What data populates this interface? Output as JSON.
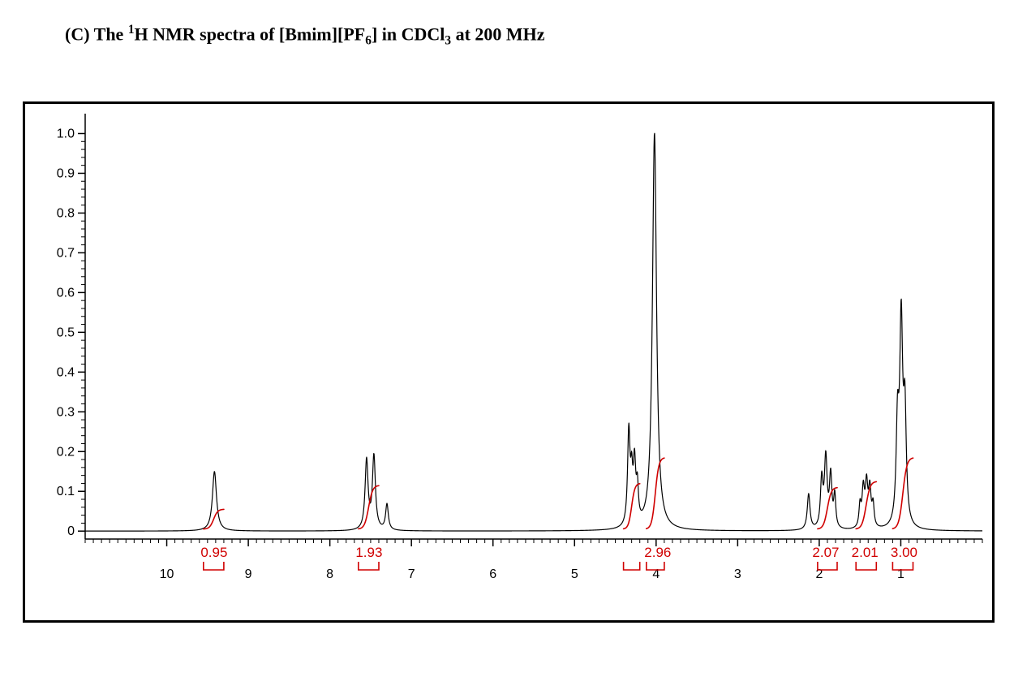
{
  "title": {
    "prefix": "(C) The ",
    "sup1": "1",
    "mid1": "H NMR spectra of [Bmim][PF",
    "sub1": "6",
    "mid2": "] in CDCl",
    "sub2": "3",
    "suffix": " at 200 MHz",
    "fontsize_pt": 22,
    "fontweight": "bold",
    "color": "#000000"
  },
  "chart": {
    "type": "nmr-spectrum",
    "background_color": "#ffffff",
    "frame_border_color": "#000000",
    "frame_border_width": 3,
    "plot": {
      "x_domain_ppm": [
        11.0,
        0.0
      ],
      "x_ticks_major": [
        10,
        9,
        8,
        7,
        6,
        5,
        4,
        3,
        2,
        1
      ],
      "x_tick_len_major": 9,
      "x_tick_len_minor": 5,
      "x_minor_count": 9,
      "y_domain": [
        -0.02,
        1.05
      ],
      "y_ticks_major": [
        0,
        0.1,
        0.2,
        0.3,
        0.4,
        0.5,
        0.6,
        0.7,
        0.8,
        0.9,
        1.0
      ],
      "y_tick_len_major": 9,
      "y_tick_len_minor": 5,
      "y_minor_count": 4,
      "axis_color": "#000000",
      "axis_width": 1.5,
      "tick_label_fontsize": 16,
      "tick_label_color": "#000000",
      "tick_label_family": "Arial, Helvetica, sans-serif",
      "spectrum_color": "#000000",
      "spectrum_width": 1.2,
      "baseline_noise": 0.003,
      "peaks": [
        {
          "ppm": 9.415,
          "height": 0.15,
          "width": 0.03
        },
        {
          "ppm": 7.55,
          "height": 0.175,
          "width": 0.022
        },
        {
          "ppm": 7.46,
          "height": 0.185,
          "width": 0.022
        },
        {
          "ppm": 7.3,
          "height": 0.065,
          "width": 0.02
        },
        {
          "ppm": 4.335,
          "height": 0.235,
          "width": 0.018
        },
        {
          "ppm": 4.3,
          "height": 0.105,
          "width": 0.015
        },
        {
          "ppm": 4.265,
          "height": 0.15,
          "width": 0.018
        },
        {
          "ppm": 4.23,
          "height": 0.085,
          "width": 0.015
        },
        {
          "ppm": 4.02,
          "height": 1.0,
          "width": 0.03
        },
        {
          "ppm": 2.13,
          "height": 0.09,
          "width": 0.02
        },
        {
          "ppm": 1.97,
          "height": 0.12,
          "width": 0.018
        },
        {
          "ppm": 1.92,
          "height": 0.175,
          "width": 0.02
        },
        {
          "ppm": 1.86,
          "height": 0.13,
          "width": 0.018
        },
        {
          "ppm": 1.81,
          "height": 0.08,
          "width": 0.015
        },
        {
          "ppm": 1.5,
          "height": 0.055,
          "width": 0.015
        },
        {
          "ppm": 1.46,
          "height": 0.095,
          "width": 0.018
        },
        {
          "ppm": 1.42,
          "height": 0.105,
          "width": 0.018
        },
        {
          "ppm": 1.38,
          "height": 0.095,
          "width": 0.018
        },
        {
          "ppm": 1.34,
          "height": 0.055,
          "width": 0.015
        },
        {
          "ppm": 1.04,
          "height": 0.24,
          "width": 0.02
        },
        {
          "ppm": 0.995,
          "height": 0.5,
          "width": 0.022
        },
        {
          "ppm": 0.95,
          "height": 0.27,
          "width": 0.02
        }
      ],
      "integrals": [
        {
          "from_ppm": 9.55,
          "to_ppm": 9.3,
          "value": "0.95",
          "curve_end_y": 0.055,
          "label_x_ppm": 9.42
        },
        {
          "from_ppm": 7.65,
          "to_ppm": 7.4,
          "value": "1.93",
          "curve_end_y": 0.115,
          "label_x_ppm": 7.52
        },
        {
          "from_ppm": 4.4,
          "to_ppm": 4.2,
          "value": "",
          "curve_end_y": 0.12,
          "label_x_ppm": null
        },
        {
          "from_ppm": 4.12,
          "to_ppm": 3.9,
          "value": "2.96",
          "curve_end_y": 0.185,
          "label_x_ppm": 3.98
        },
        {
          "from_ppm": 2.02,
          "to_ppm": 1.78,
          "value": "2.07",
          "curve_end_y": 0.11,
          "label_x_ppm": 1.92
        },
        {
          "from_ppm": 1.55,
          "to_ppm": 1.3,
          "value": "2.01",
          "curve_end_y": 0.125,
          "label_x_ppm": 1.44
        },
        {
          "from_ppm": 1.1,
          "to_ppm": 0.85,
          "value": "3.00",
          "curve_end_y": 0.185,
          "label_x_ppm": 0.96
        }
      ],
      "integral_color": "#d00000",
      "integral_width": 1.6,
      "integral_label_fontsize": 17,
      "integral_label_family": "Arial, Helvetica, sans-serif",
      "integral_bracket_color": "#d00000",
      "integral_bracket_width": 1.6
    }
  }
}
